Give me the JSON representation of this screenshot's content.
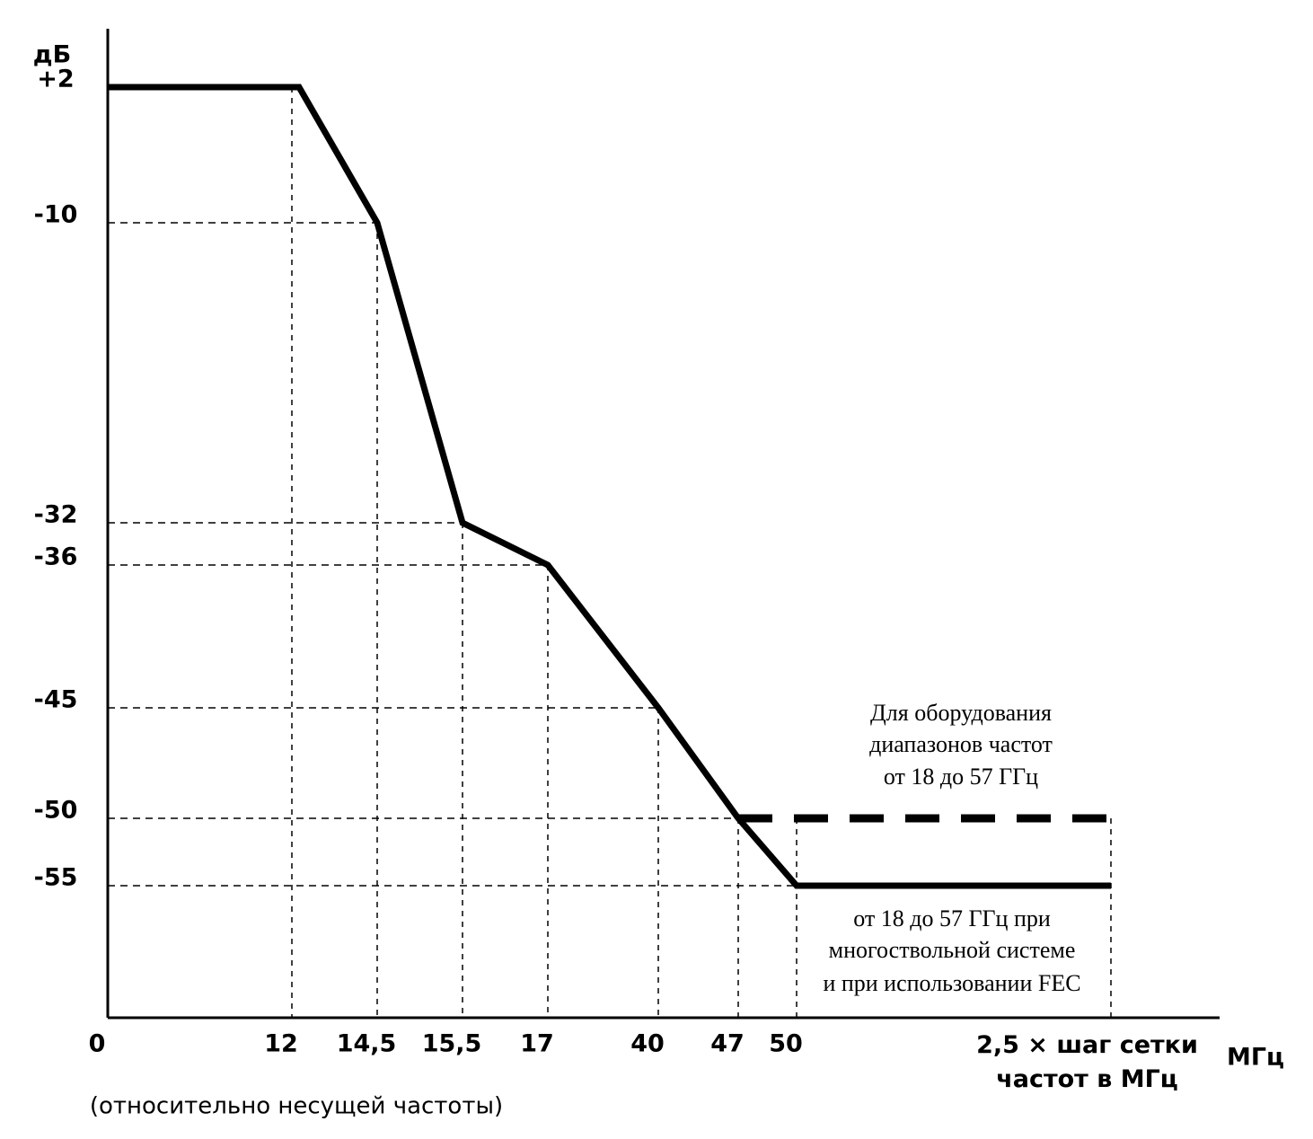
{
  "chart_data": {
    "type": "line",
    "y_label": "дБ",
    "x_unit": "МГц",
    "x_note": "(относительно несущей частоты)",
    "categories": [
      "0",
      "12",
      "14,5",
      "15,5",
      "17",
      "40",
      "47",
      "50",
      "2,5 × шаг сетки частот в МГц"
    ],
    "yticks": [
      {
        "value": 2,
        "label": "+2"
      },
      -10,
      -32,
      -36,
      -45,
      -50,
      -55
    ],
    "series": [
      {
        "color": "#000000",
        "values": [
          2,
          2,
          -10,
          -32,
          -36,
          -45,
          -50,
          -55,
          -55
        ]
      },
      {
        "color": "#000000",
        "values": [
          null,
          null,
          null,
          null,
          null,
          null,
          -50,
          -50,
          -50
        ]
      }
    ],
    "annotations": [
      [
        "Для оборудования",
        "диапазонов частот",
        "от 18 до 57 ГГц"
      ],
      [
        "от 18 до 57 ГГц при",
        "многоствольной системе",
        "и при использовании FEC"
      ]
    ]
  }
}
